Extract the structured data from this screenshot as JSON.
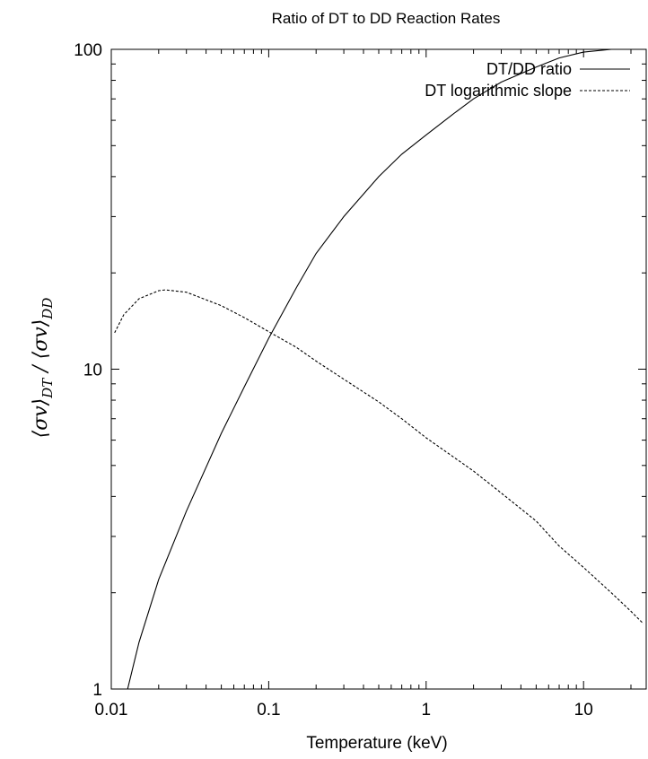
{
  "chart_data": {
    "type": "line",
    "title": "Ratio of DT to DD Reaction Rates",
    "xlabel": "Temperature (keV)",
    "ylabel": "⟨σv⟩DT / ⟨σv⟩DD",
    "x_scale": "log",
    "y_scale": "log",
    "xlim": [
      0.01,
      25
    ],
    "ylim": [
      1,
      100
    ],
    "x_ticks": [
      "0.01",
      "0.1",
      "1",
      "10"
    ],
    "y_ticks": [
      "1",
      "10",
      "100"
    ],
    "legend": "top-right",
    "series": [
      {
        "name": "DT/DD ratio",
        "style": "solid",
        "color": "#000000",
        "x": [
          0.0127,
          0.015,
          0.02,
          0.03,
          0.05,
          0.07,
          0.1,
          0.15,
          0.2,
          0.3,
          0.5,
          0.7,
          1,
          1.5,
          2,
          3,
          5,
          7,
          10,
          15,
          17.5
        ],
        "y": [
          1.0,
          1.4,
          2.2,
          3.6,
          6.3,
          8.8,
          12.5,
          18,
          23,
          30,
          40,
          47,
          54,
          63,
          70,
          79,
          88,
          94,
          98,
          100,
          100
        ]
      },
      {
        "name": "DT logarithmic slope",
        "style": "dashed",
        "color": "#000000",
        "x": [
          0.0105,
          0.012,
          0.015,
          0.02,
          0.022,
          0.03,
          0.05,
          0.07,
          0.1,
          0.15,
          0.2,
          0.3,
          0.5,
          0.7,
          1,
          2,
          3,
          5,
          7,
          10,
          15,
          20,
          24
        ],
        "y": [
          13,
          14.8,
          16.6,
          17.6,
          17.7,
          17.4,
          15.8,
          14.5,
          13.1,
          11.7,
          10.6,
          9.3,
          7.9,
          7.0,
          6.1,
          4.8,
          4.1,
          3.35,
          2.8,
          2.4,
          2.0,
          1.75,
          1.6
        ]
      }
    ]
  }
}
